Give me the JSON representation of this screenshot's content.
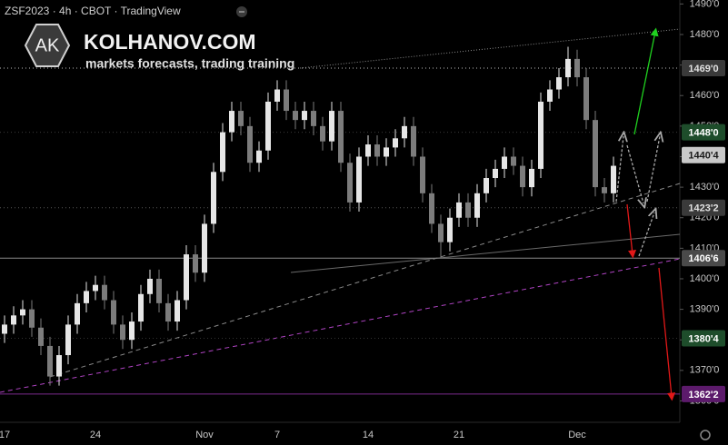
{
  "chart_data": {
    "type": "candlestick",
    "title": "ZSF2023 · 4h · CBOT · TradingView",
    "brand": {
      "logo": "AK",
      "name": "KOLHANOV.COM",
      "tagline": "markets forecasts, trading training"
    },
    "up_color": "#e6e6e6",
    "down_color": "#7c7c7c",
    "categories": [
      "17",
      null,
      null,
      null,
      null,
      null,
      null,
      null,
      null,
      null,
      "24",
      null,
      null,
      null,
      null,
      null,
      null,
      null,
      null,
      null,
      null,
      null,
      "Nov",
      null,
      null,
      null,
      null,
      null,
      null,
      null,
      "7",
      null,
      null,
      null,
      null,
      null,
      null,
      null,
      null,
      null,
      "14",
      null,
      null,
      null,
      null,
      null,
      null,
      null,
      null,
      null,
      "21",
      null,
      null,
      null,
      null,
      null,
      null,
      null,
      null,
      null,
      null,
      null,
      null,
      "Dec",
      null,
      null,
      null,
      null
    ],
    "open": [
      1382,
      1385,
      1388,
      1390,
      1384,
      1378,
      1368,
      1375,
      1385,
      1392,
      1396,
      1398,
      1393,
      1385,
      1380,
      1386,
      1395,
      1400,
      1392,
      1386,
      1393,
      1408,
      1402,
      1418,
      1435,
      1448,
      1455,
      1450,
      1438,
      1442,
      1458,
      1462,
      1455,
      1452,
      1455,
      1450,
      1445,
      1455,
      1438,
      1425,
      1440,
      1444,
      1440,
      1443,
      1446,
      1450,
      1440,
      1428,
      1418,
      1412,
      1420,
      1425,
      1420,
      1428,
      1433,
      1436,
      1440,
      1437,
      1430,
      1436,
      1458,
      1462,
      1466,
      1472,
      1466,
      1452,
      1430,
      1428
    ],
    "high": [
      1388,
      1391,
      1393,
      1393,
      1387,
      1381,
      1378,
      1388,
      1395,
      1399,
      1401,
      1401,
      1396,
      1388,
      1389,
      1398,
      1403,
      1403,
      1395,
      1396,
      1411,
      1411,
      1421,
      1438,
      1451,
      1458,
      1458,
      1453,
      1445,
      1461,
      1465,
      1465,
      1458,
      1458,
      1458,
      1453,
      1458,
      1458,
      1441,
      1443,
      1447,
      1447,
      1446,
      1449,
      1453,
      1453,
      1443,
      1431,
      1421,
      1423,
      1428,
      1428,
      1431,
      1436,
      1439,
      1443,
      1443,
      1440,
      1439,
      1461,
      1465,
      1469,
      1476,
      1475,
      1469,
      1455,
      1433,
      1440
    ],
    "low": [
      1379,
      1382,
      1385,
      1381,
      1375,
      1365,
      1365,
      1372,
      1382,
      1389,
      1393,
      1390,
      1382,
      1377,
      1377,
      1383,
      1392,
      1389,
      1383,
      1383,
      1390,
      1399,
      1399,
      1415,
      1432,
      1445,
      1447,
      1435,
      1435,
      1439,
      1455,
      1452,
      1449,
      1449,
      1447,
      1442,
      1442,
      1435,
      1422,
      1422,
      1437,
      1437,
      1437,
      1440,
      1443,
      1437,
      1425,
      1415,
      1407,
      1409,
      1417,
      1417,
      1417,
      1425,
      1430,
      1433,
      1434,
      1427,
      1427,
      1433,
      1455,
      1459,
      1463,
      1463,
      1449,
      1427,
      1425,
      1425
    ],
    "close": [
      1385,
      1388,
      1390,
      1384,
      1378,
      1368,
      1375,
      1385,
      1392,
      1396,
      1398,
      1393,
      1385,
      1380,
      1386,
      1395,
      1400,
      1392,
      1386,
      1393,
      1408,
      1402,
      1418,
      1435,
      1448,
      1455,
      1450,
      1438,
      1442,
      1458,
      1462,
      1455,
      1452,
      1455,
      1450,
      1445,
      1455,
      1438,
      1425,
      1440,
      1444,
      1440,
      1443,
      1446,
      1450,
      1440,
      1428,
      1418,
      1412,
      1420,
      1425,
      1420,
      1428,
      1433,
      1436,
      1440,
      1437,
      1430,
      1436,
      1458,
      1462,
      1466,
      1472,
      1466,
      1452,
      1430,
      1428,
      1437
    ],
    "ylim": [
      1353,
      1491.3
    ],
    "yticks": [
      {
        "value": 1360,
        "label": "1360'0"
      },
      {
        "value": 1370,
        "label": "1370'0"
      },
      {
        "value": 1380,
        "label": "1380'0"
      },
      {
        "value": 1390,
        "label": "1390'0"
      },
      {
        "value": 1400,
        "label": "1400'0"
      },
      {
        "value": 1410,
        "label": "1410'0"
      },
      {
        "value": 1420,
        "label": "1420'0"
      },
      {
        "value": 1430,
        "label": "1430'0"
      },
      {
        "value": 1440,
        "label": "1440'0"
      },
      {
        "value": 1450,
        "label": "1450'0"
      },
      {
        "value": 1460,
        "label": "1460'0"
      },
      {
        "value": 1470,
        "label": "1470'0"
      },
      {
        "value": 1480,
        "label": "1480'0"
      },
      {
        "value": 1490,
        "label": "1490'0"
      }
    ],
    "price_lines": [
      {
        "value": 1469,
        "label": "1469'0",
        "color": "#3a3a3a",
        "text_color": "#e0e0e0",
        "line_color": "#bdbdbd",
        "style": "dotted"
      },
      {
        "value": 1448,
        "label": "1448'0",
        "color": "#1e4d2b",
        "text_color": "#ffffff",
        "line_color": "#3a3a3a",
        "style": "dotted"
      },
      {
        "value": 1440.5,
        "label": "1440'4",
        "color": "#c9c9c9",
        "text_color": "#1a1a1a",
        "line_color": "none",
        "style": "none"
      },
      {
        "value": 1423.25,
        "label": "1423'2",
        "color": "#3a3a3a",
        "text_color": "#e0e0e0",
        "line_color": "#555555",
        "style": "dotted"
      },
      {
        "value": 1406.75,
        "label": "1406'6",
        "color": "#4a4a4a",
        "text_color": "#ffffff",
        "line_color": "#8a8a8a",
        "style": "solid"
      },
      {
        "value": 1380.5,
        "label": "1380'4",
        "color": "#1e4d2b",
        "text_color": "#ffffff",
        "line_color": "#333333",
        "style": "dotted"
      },
      {
        "value": 1362.25,
        "label": "1362'2",
        "color": "#5c1a6b",
        "text_color": "#ffffff",
        "line_color": "#7b2a8c",
        "style": "solid"
      }
    ]
  }
}
